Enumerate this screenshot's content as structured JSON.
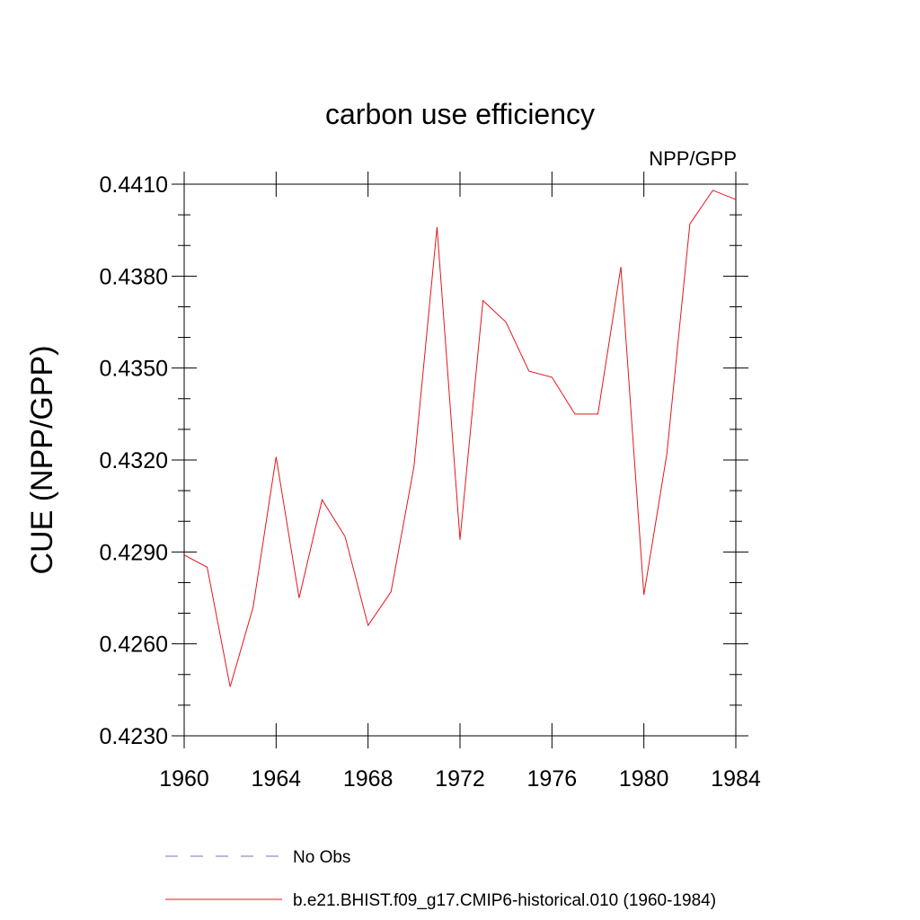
{
  "chart_data": {
    "type": "line",
    "title": "carbon use efficiency",
    "subtitle_right": "NPP/GPP",
    "xlabel": "",
    "ylabel": "CUE  (NPP/GPP)",
    "xlim": [
      1960,
      1984
    ],
    "ylim": [
      0.423,
      0.441
    ],
    "x_ticks": [
      1960,
      1964,
      1968,
      1972,
      1976,
      1980,
      1984
    ],
    "x_tick_labels": [
      "1960",
      "1964",
      "1968",
      "1972",
      "1976",
      "1980",
      "1984"
    ],
    "y_ticks": [
      0.423,
      0.426,
      0.429,
      0.432,
      0.435,
      0.438,
      0.441
    ],
    "y_tick_labels": [
      "0.4230",
      "0.4260",
      "0.4290",
      "0.4320",
      "0.4350",
      "0.4380",
      "0.4410"
    ],
    "grid": false,
    "legend_position": "bottom",
    "series": [
      {
        "name": "b.e21.BHIST.f09_g17.CMIP6-historical.010 (1960-1984)",
        "color": "#e8141c",
        "style": "solid",
        "x": [
          1960,
          1961,
          1962,
          1963,
          1964,
          1965,
          1966,
          1967,
          1968,
          1969,
          1970,
          1971,
          1972,
          1973,
          1974,
          1975,
          1976,
          1977,
          1978,
          1979,
          1980,
          1981,
          1982,
          1983,
          1984
        ],
        "y": [
          0.4289,
          0.4285,
          0.4246,
          0.4272,
          0.4321,
          0.4275,
          0.4307,
          0.4295,
          0.4266,
          0.4277,
          0.4318,
          0.4396,
          0.4294,
          0.4372,
          0.4365,
          0.4349,
          0.4347,
          0.4335,
          0.4335,
          0.4383,
          0.4276,
          0.4322,
          0.4397,
          0.4408,
          0.4405
        ]
      }
    ],
    "legend": [
      {
        "label": "No Obs",
        "color": "#7b6fb0",
        "style": "dashed"
      },
      {
        "label": "b.e21.BHIST.f09_g17.CMIP6-historical.010 (1960-1984)",
        "color": "#e8141c",
        "style": "solid"
      }
    ]
  }
}
